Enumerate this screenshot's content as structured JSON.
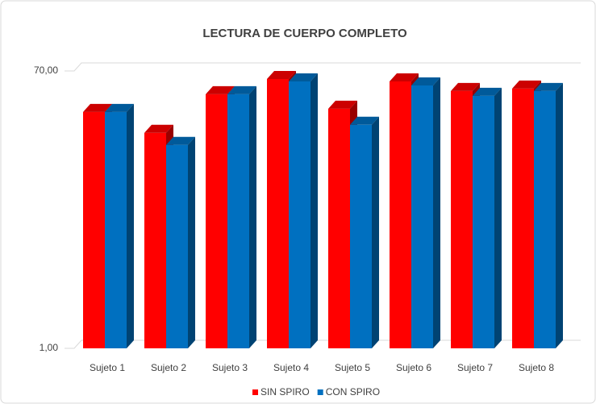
{
  "chart_data": {
    "type": "bar3d",
    "title": "LECTURA DE CUERPO COMPLETO",
    "categories": [
      "Sujeto 1",
      "Sujeto 2",
      "Sujeto 3",
      "Sujeto 4",
      "Sujeto 5",
      "Sujeto 6",
      "Sujeto 7",
      "Sujeto 8"
    ],
    "series": [
      {
        "name": "SIN SPIRO",
        "color": "#ff0000",
        "values": [
          59.8,
          54.6,
          64.2,
          68.0,
          60.6,
          67.4,
          65.0,
          65.6
        ]
      },
      {
        "name": "CON SPIRO",
        "color": "#0070c0",
        "values": [
          59.8,
          51.6,
          64.2,
          67.4,
          56.6,
          66.4,
          63.8,
          65.0
        ]
      }
    ],
    "ylim": [
      1,
      70
    ],
    "yticks": [
      {
        "value": 1,
        "label": "1,00"
      },
      {
        "value": 70,
        "label": "70,00"
      }
    ],
    "grid": true,
    "legend": "bottom"
  }
}
